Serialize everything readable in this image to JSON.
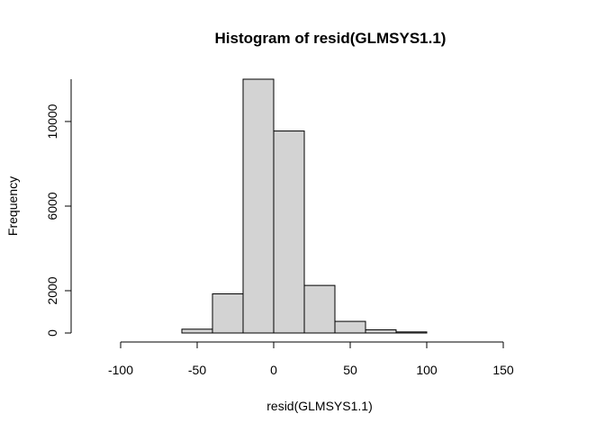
{
  "chart_data": {
    "type": "bar",
    "title": "Histogram of resid(GLMSYS1.1)",
    "xlabel": "resid(GLMSYS1.1)",
    "ylabel": "Frequency",
    "bins": [
      {
        "from": -100,
        "to": -80,
        "count": 0
      },
      {
        "from": -80,
        "to": -60,
        "count": 0
      },
      {
        "from": -60,
        "to": -40,
        "count": 180
      },
      {
        "from": -40,
        "to": -20,
        "count": 1850
      },
      {
        "from": -20,
        "to": 0,
        "count": 12000
      },
      {
        "from": 0,
        "to": 20,
        "count": 9550
      },
      {
        "from": 20,
        "to": 40,
        "count": 2250
      },
      {
        "from": 40,
        "to": 60,
        "count": 550
      },
      {
        "from": 60,
        "to": 80,
        "count": 150
      },
      {
        "from": 80,
        "to": 100,
        "count": 50
      },
      {
        "from": 100,
        "to": 120,
        "count": 0
      },
      {
        "from": 120,
        "to": 140,
        "count": 0
      },
      {
        "from": 140,
        "to": 160,
        "count": 0
      },
      {
        "from": 160,
        "to": 180,
        "count": 0
      }
    ],
    "xlim": [
      -100,
      180
    ],
    "ylim": [
      0,
      12000
    ],
    "xticks": [
      -100,
      -50,
      0,
      50,
      100,
      150
    ],
    "xtick_labels": [
      "-100",
      "-50",
      "0",
      "50",
      "100",
      "150"
    ],
    "yticks": [
      0,
      2000,
      6000,
      10000
    ],
    "ytick_labels": [
      "0",
      "2000",
      "6000",
      "10000"
    ],
    "grid": false,
    "colors": {
      "bar_fill": "#d3d3d3",
      "bar_stroke": "#000000"
    }
  }
}
